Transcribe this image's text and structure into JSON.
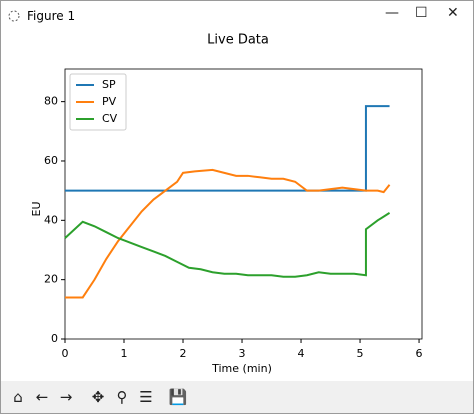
{
  "window": {
    "title": "Figure 1"
  },
  "chart_data": {
    "type": "line",
    "title": "Live Data",
    "xlabel": "Time (min)",
    "ylabel": "EU",
    "xlim": [
      0,
      6.05
    ],
    "ylim": [
      0,
      91
    ],
    "xticks": [
      0,
      1,
      2,
      3,
      4,
      5,
      6
    ],
    "yticks": [
      0,
      20,
      40,
      60,
      80
    ],
    "legend": "upper left",
    "series": [
      {
        "name": "SP",
        "color": "#1f77b4",
        "x": [
          0,
          5.1,
          5.1,
          5.5
        ],
        "values": [
          50,
          50,
          78.5,
          78.5
        ]
      },
      {
        "name": "PV",
        "color": "#ff7f0e",
        "x": [
          0,
          0.3,
          0.5,
          0.7,
          0.9,
          1.1,
          1.3,
          1.5,
          1.7,
          1.9,
          2.0,
          2.2,
          2.5,
          2.7,
          2.9,
          3.1,
          3.3,
          3.5,
          3.7,
          3.9,
          4.1,
          4.3,
          4.5,
          4.7,
          4.9,
          5.1,
          5.3,
          5.4,
          5.5
        ],
        "values": [
          14,
          14,
          20,
          27,
          33,
          38,
          43,
          47,
          50,
          53,
          56,
          56.5,
          57,
          56,
          55,
          55,
          54.5,
          54,
          54,
          53,
          50,
          50,
          50.5,
          51,
          50.5,
          50,
          50,
          49.5,
          52
        ]
      },
      {
        "name": "CV",
        "color": "#2ca02c",
        "x": [
          0,
          0.3,
          0.5,
          0.7,
          0.9,
          1.1,
          1.3,
          1.5,
          1.7,
          1.9,
          2.1,
          2.3,
          2.5,
          2.7,
          2.9,
          3.1,
          3.3,
          3.5,
          3.7,
          3.9,
          4.1,
          4.3,
          4.5,
          4.7,
          4.9,
          5.1,
          5.1,
          5.3,
          5.5
        ],
        "values": [
          34,
          39.5,
          38,
          36,
          34,
          32.5,
          31,
          29.5,
          28,
          26,
          24,
          23.5,
          22.5,
          22,
          22,
          21.5,
          21.5,
          21.5,
          21,
          21,
          21.5,
          22.5,
          22,
          22,
          22,
          21.5,
          37,
          40,
          42.5
        ]
      }
    ]
  }
}
